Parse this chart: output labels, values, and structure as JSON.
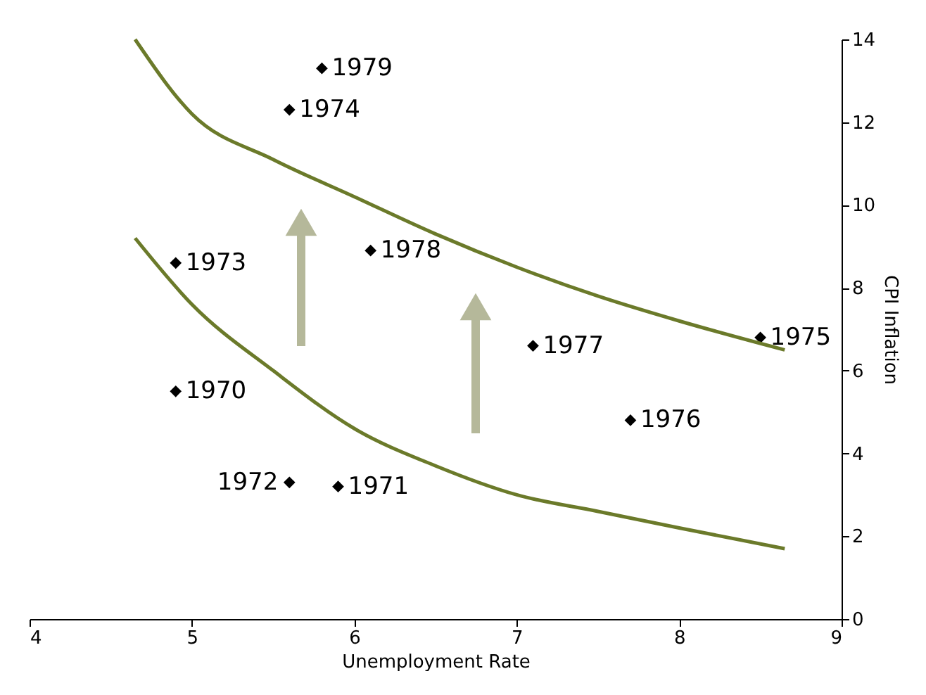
{
  "chart_data": {
    "type": "scatter",
    "xlabel": "Unemployment Rate",
    "ylabel": "CPI Inflation",
    "xlim": [
      4,
      9
    ],
    "xticks": [
      4,
      5,
      6,
      7,
      8,
      9
    ],
    "ylim": [
      0,
      14
    ],
    "yticks": [
      0,
      2,
      4,
      6,
      8,
      10,
      12,
      14
    ],
    "grid": false,
    "series": [
      {
        "marker": "diamond",
        "color": "#000000",
        "x": [
          4.9,
          5.9,
          5.6,
          4.9,
          5.6,
          8.5,
          7.7,
          7.1,
          6.1,
          5.8
        ],
        "values": [
          5.5,
          3.2,
          3.3,
          8.6,
          12.3,
          6.8,
          4.8,
          6.6,
          8.9,
          13.3
        ]
      },
      {
        "type": "line",
        "marker": "none",
        "color": "#6b7a2a",
        "x": [
          4.65,
          5,
          5.5,
          6,
          6.5,
          7,
          7.5,
          8,
          8.65
        ],
        "values": [
          14.0,
          12.2,
          11.1,
          10.2,
          9.3,
          8.5,
          7.8,
          7.2,
          6.5
        ]
      },
      {
        "type": "line",
        "marker": "none",
        "color": "#6b7a2a",
        "x": [
          4.65,
          5,
          5.5,
          6,
          6.5,
          7,
          7.5,
          8,
          8.65
        ],
        "values": [
          9.2,
          7.6,
          6.0,
          4.6,
          3.7,
          3.0,
          2.6,
          2.2,
          1.7
        ]
      }
    ],
    "annotations": [
      {
        "text": "1970",
        "x": 4.9,
        "y": 5.5
      },
      {
        "text": "1971",
        "x": 5.9,
        "y": 3.2
      },
      {
        "text": "1972",
        "x": 5.6,
        "y": 3.3
      },
      {
        "text": "1973",
        "x": 4.9,
        "y": 8.6
      },
      {
        "text": "1974",
        "x": 5.6,
        "y": 12.3
      },
      {
        "text": "1975",
        "x": 8.5,
        "y": 6.8
      },
      {
        "text": "1976",
        "x": 7.7,
        "y": 4.8
      },
      {
        "text": "1977",
        "x": 7.1,
        "y": 6.6
      },
      {
        "text": "1978",
        "x": 6.1,
        "y": 8.9
      },
      {
        "text": "1979",
        "x": 5.8,
        "y": 13.3
      }
    ]
  }
}
